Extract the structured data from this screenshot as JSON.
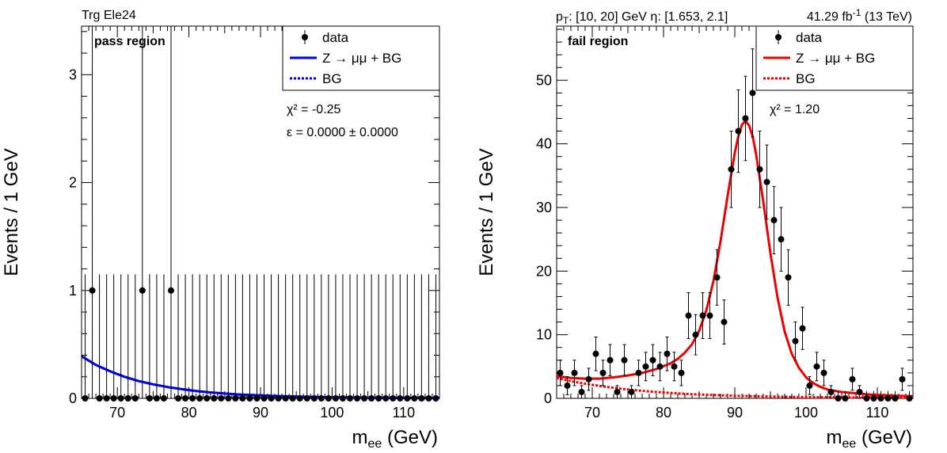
{
  "chart_data": [
    {
      "type": "scatter",
      "header": "Trg Ele24",
      "region": "pass region",
      "xlabel": "m",
      "xlabel_sub": "ee",
      "xlabel_unit": "(GeV)",
      "ylabel": "Events / 1 GeV",
      "xlim": [
        65,
        115
      ],
      "ylim": [
        0,
        3.45
      ],
      "xticks": [
        70,
        80,
        90,
        100,
        110
      ],
      "yticks": [
        0,
        1,
        2,
        3
      ],
      "x": [
        65.5,
        66.5,
        67.5,
        68.5,
        69.5,
        70.5,
        71.5,
        72.5,
        73.5,
        74.5,
        75.5,
        76.5,
        77.5,
        78.5,
        79.5,
        80.5,
        81.5,
        82.5,
        83.5,
        84.5,
        85.5,
        86.5,
        87.5,
        88.5,
        89.5,
        90.5,
        91.5,
        92.5,
        93.5,
        94.5,
        95.5,
        96.5,
        97.5,
        98.5,
        99.5,
        100.5,
        101.5,
        102.5,
        103.5,
        104.5,
        105.5,
        106.5,
        107.5,
        108.5,
        109.5,
        110.5,
        111.5,
        112.5,
        113.5,
        114.5
      ],
      "values": [
        0,
        1,
        0,
        0,
        0,
        0,
        0,
        0,
        1,
        0,
        0,
        0,
        1,
        0,
        0,
        0,
        0,
        0,
        0,
        0,
        0,
        0,
        0,
        0,
        0,
        0,
        0,
        0,
        0,
        0,
        0,
        0,
        0,
        0,
        0,
        0,
        0,
        0,
        0,
        0,
        0,
        0,
        0,
        0,
        0,
        0,
        0,
        0,
        0,
        0
      ],
      "error_up": [
        1.15,
        3.3,
        1.15,
        1.15,
        1.15,
        1.15,
        1.15,
        1.15,
        3.3,
        1.15,
        1.15,
        1.15,
        3.3,
        1.15,
        1.15,
        1.15,
        1.15,
        1.15,
        1.15,
        1.15,
        1.15,
        1.15,
        1.15,
        1.15,
        1.15,
        1.15,
        1.15,
        1.15,
        1.15,
        1.15,
        1.15,
        1.15,
        1.15,
        1.15,
        1.15,
        1.15,
        1.15,
        1.15,
        1.15,
        1.15,
        1.15,
        1.15,
        1.15,
        1.15,
        1.15,
        1.15,
        1.15,
        1.15,
        1.15,
        1.15
      ],
      "error_down": [
        0,
        1,
        0,
        0,
        0,
        0,
        0,
        0,
        1,
        0,
        0,
        0,
        1,
        0,
        0,
        0,
        0,
        0,
        0,
        0,
        0,
        0,
        0,
        0,
        0,
        0,
        0,
        0,
        0,
        0,
        0,
        0,
        0,
        0,
        0,
        0,
        0,
        0,
        0,
        0,
        0,
        0,
        0,
        0,
        0,
        0,
        0,
        0,
        0,
        0
      ],
      "fit_color": "#0000ee",
      "fit_x": [
        65,
        67,
        69,
        71,
        73,
        75,
        77,
        79,
        81,
        83,
        85,
        87,
        89,
        91,
        93,
        95,
        97,
        99,
        101,
        103,
        105,
        107,
        109,
        111,
        113,
        115
      ],
      "fit_total": [
        0.39,
        0.31,
        0.25,
        0.2,
        0.16,
        0.13,
        0.105,
        0.085,
        0.068,
        0.055,
        0.045,
        0.036,
        0.03,
        0.025,
        0.02,
        0.017,
        0.014,
        0.011,
        0.009,
        0.008,
        0.006,
        0.005,
        0.004,
        0.004,
        0.003,
        0.003
      ],
      "fit_bg": [
        0.39,
        0.31,
        0.25,
        0.2,
        0.16,
        0.13,
        0.105,
        0.085,
        0.068,
        0.055,
        0.045,
        0.036,
        0.03,
        0.025,
        0.02,
        0.017,
        0.014,
        0.011,
        0.009,
        0.008,
        0.006,
        0.005,
        0.004,
        0.004,
        0.003,
        0.003
      ],
      "legend": [
        {
          "label": "data"
        },
        {
          "label": "Z → μμ + BG"
        },
        {
          "label": "BG"
        }
      ],
      "annotations": [
        "χ² = -0.25",
        "ε = 0.0000 ± 0.0000"
      ],
      "legend_position": "top-right"
    },
    {
      "type": "scatter",
      "header_left": "p_T: [10, 20] GeV η: [1.653, 2.1]",
      "header_right": "41.29 fb⁻¹ (13 TeV)",
      "region": "fail region",
      "xlabel": "m",
      "xlabel_sub": "ee",
      "xlabel_unit": "(GeV)",
      "ylabel": "Events / 1 GeV",
      "xlim": [
        65,
        115
      ],
      "ylim": [
        0,
        58.5
      ],
      "xticks": [
        70,
        80,
        90,
        100,
        110
      ],
      "yticks": [
        0,
        10,
        20,
        30,
        40,
        50
      ],
      "x": [
        65.5,
        66.5,
        67.5,
        68.5,
        69.5,
        70.5,
        71.5,
        72.5,
        73.5,
        74.5,
        75.5,
        76.5,
        77.5,
        78.5,
        79.5,
        80.5,
        81.5,
        82.5,
        83.5,
        84.5,
        85.5,
        86.5,
        87.5,
        88.5,
        89.5,
        90.5,
        91.5,
        92.5,
        93.5,
        94.5,
        95.5,
        96.5,
        97.5,
        98.5,
        99.5,
        100.5,
        101.5,
        102.5,
        103.5,
        104.5,
        105.5,
        106.5,
        107.5,
        108.5,
        109.5,
        110.5,
        111.5,
        112.5,
        113.5,
        114.5
      ],
      "values": [
        4,
        2,
        4,
        1,
        3,
        7,
        4,
        6,
        1,
        6,
        1,
        4,
        5,
        6,
        5,
        7,
        5,
        4,
        13,
        10,
        13,
        13,
        19,
        12,
        36,
        42,
        44,
        48,
        36,
        34,
        28,
        25,
        19,
        9,
        11,
        2,
        5,
        4,
        1,
        0,
        0,
        3,
        1,
        0,
        0,
        0,
        0,
        0,
        3,
        0
      ],
      "fit_color": "#ee0000",
      "fit_x": [
        65,
        67,
        69,
        71,
        73,
        75,
        77,
        79,
        81,
        82,
        83,
        84,
        85,
        86,
        87,
        88,
        89,
        90,
        90.5,
        91,
        91.5,
        92,
        92.5,
        93,
        94,
        95,
        96,
        97,
        98,
        99,
        100,
        101,
        102,
        103,
        105,
        107,
        109,
        111,
        113,
        115
      ],
      "fit_total": [
        3.5,
        3.2,
        3.1,
        3.1,
        3.3,
        3.6,
        4.0,
        4.6,
        5.5,
        6.2,
        7.2,
        8.5,
        10.6,
        13.8,
        18.4,
        24.7,
        31.9,
        38.6,
        41.2,
        43.0,
        43.6,
        42.9,
        41.2,
        38.3,
        30.9,
        22.8,
        15.8,
        10.5,
        7.0,
        4.8,
        3.3,
        2.4,
        1.8,
        1.4,
        1.0,
        0.8,
        0.6,
        0.5,
        0.4,
        0.35
      ],
      "fit_bg": [
        3.2,
        2.7,
        2.3,
        1.95,
        1.65,
        1.4,
        1.18,
        1.0,
        0.85,
        0.78,
        0.72,
        0.66,
        0.61,
        0.56,
        0.52,
        0.48,
        0.44,
        0.4,
        0.39,
        0.37,
        0.36,
        0.35,
        0.34,
        0.33,
        0.31,
        0.29,
        0.27,
        0.25,
        0.23,
        0.21,
        0.2,
        0.19,
        0.18,
        0.17,
        0.15,
        0.13,
        0.12,
        0.11,
        0.1,
        0.09
      ],
      "legend": [
        {
          "label": "data"
        },
        {
          "label": "Z → μμ + BG"
        },
        {
          "label": "BG"
        }
      ],
      "annotations": [
        "χ² = 1.20"
      ],
      "legend_position": "top-right"
    }
  ]
}
